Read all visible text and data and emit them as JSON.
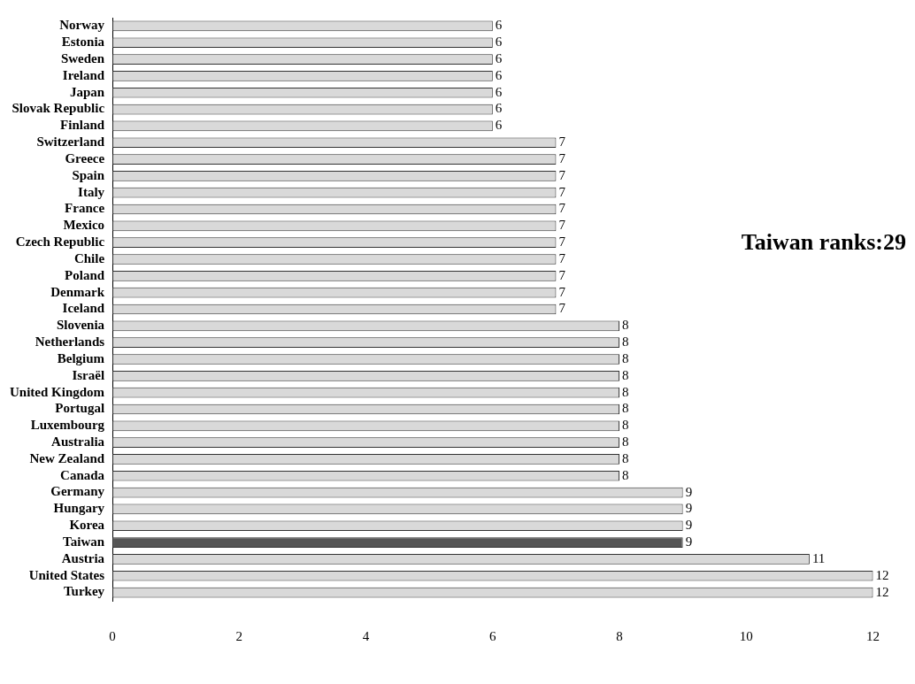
{
  "chart_data": {
    "type": "bar",
    "orientation": "horizontal",
    "categories": [
      "Norway",
      "Estonia",
      "Sweden",
      "Ireland",
      "Japan",
      "Slovak Republic",
      "Finland",
      "Switzerland",
      "Greece",
      "Spain",
      "Italy",
      "France",
      "Mexico",
      "Czech Republic",
      "Chile",
      "Poland",
      "Denmark",
      "Iceland",
      "Slovenia",
      "Netherlands",
      "Belgium",
      "Israël",
      "United Kingdom",
      "Portugal",
      "Luxembourg",
      "Australia",
      "New Zealand",
      "Canada",
      "Germany",
      "Hungary",
      "Korea",
      "Taiwan",
      "Austria",
      "United States",
      "Turkey"
    ],
    "values": [
      6,
      6,
      6,
      6,
      6,
      6,
      6,
      7,
      7,
      7,
      7,
      7,
      7,
      7,
      7,
      7,
      7,
      7,
      8,
      8,
      8,
      8,
      8,
      8,
      8,
      8,
      8,
      8,
      9,
      9,
      9,
      9,
      11,
      12,
      12
    ],
    "colors": [
      "#d9d9d9",
      "#d9d9d9",
      "#d9d9d9",
      "#d9d9d9",
      "#d9d9d9",
      "#d9d9d9",
      "#d9d9d9",
      "#d9d9d9",
      "#d9d9d9",
      "#d9d9d9",
      "#d9d9d9",
      "#d9d9d9",
      "#d9d9d9",
      "#d9d9d9",
      "#d9d9d9",
      "#d9d9d9",
      "#d9d9d9",
      "#d9d9d9",
      "#d9d9d9",
      "#d9d9d9",
      "#d9d9d9",
      "#d9d9d9",
      "#d9d9d9",
      "#d9d9d9",
      "#d9d9d9",
      "#d9d9d9",
      "#d9d9d9",
      "#d9d9d9",
      "#d9d9d9",
      "#d9d9d9",
      "#d9d9d9",
      "#555555",
      "#d9d9d9",
      "#d9d9d9",
      "#d9d9d9"
    ],
    "xlim": [
      0,
      12
    ],
    "xticks": [
      0,
      2,
      4,
      6,
      8,
      10,
      12
    ],
    "data_labels": true,
    "annotations": [
      "Taiwan ranks:29"
    ]
  }
}
